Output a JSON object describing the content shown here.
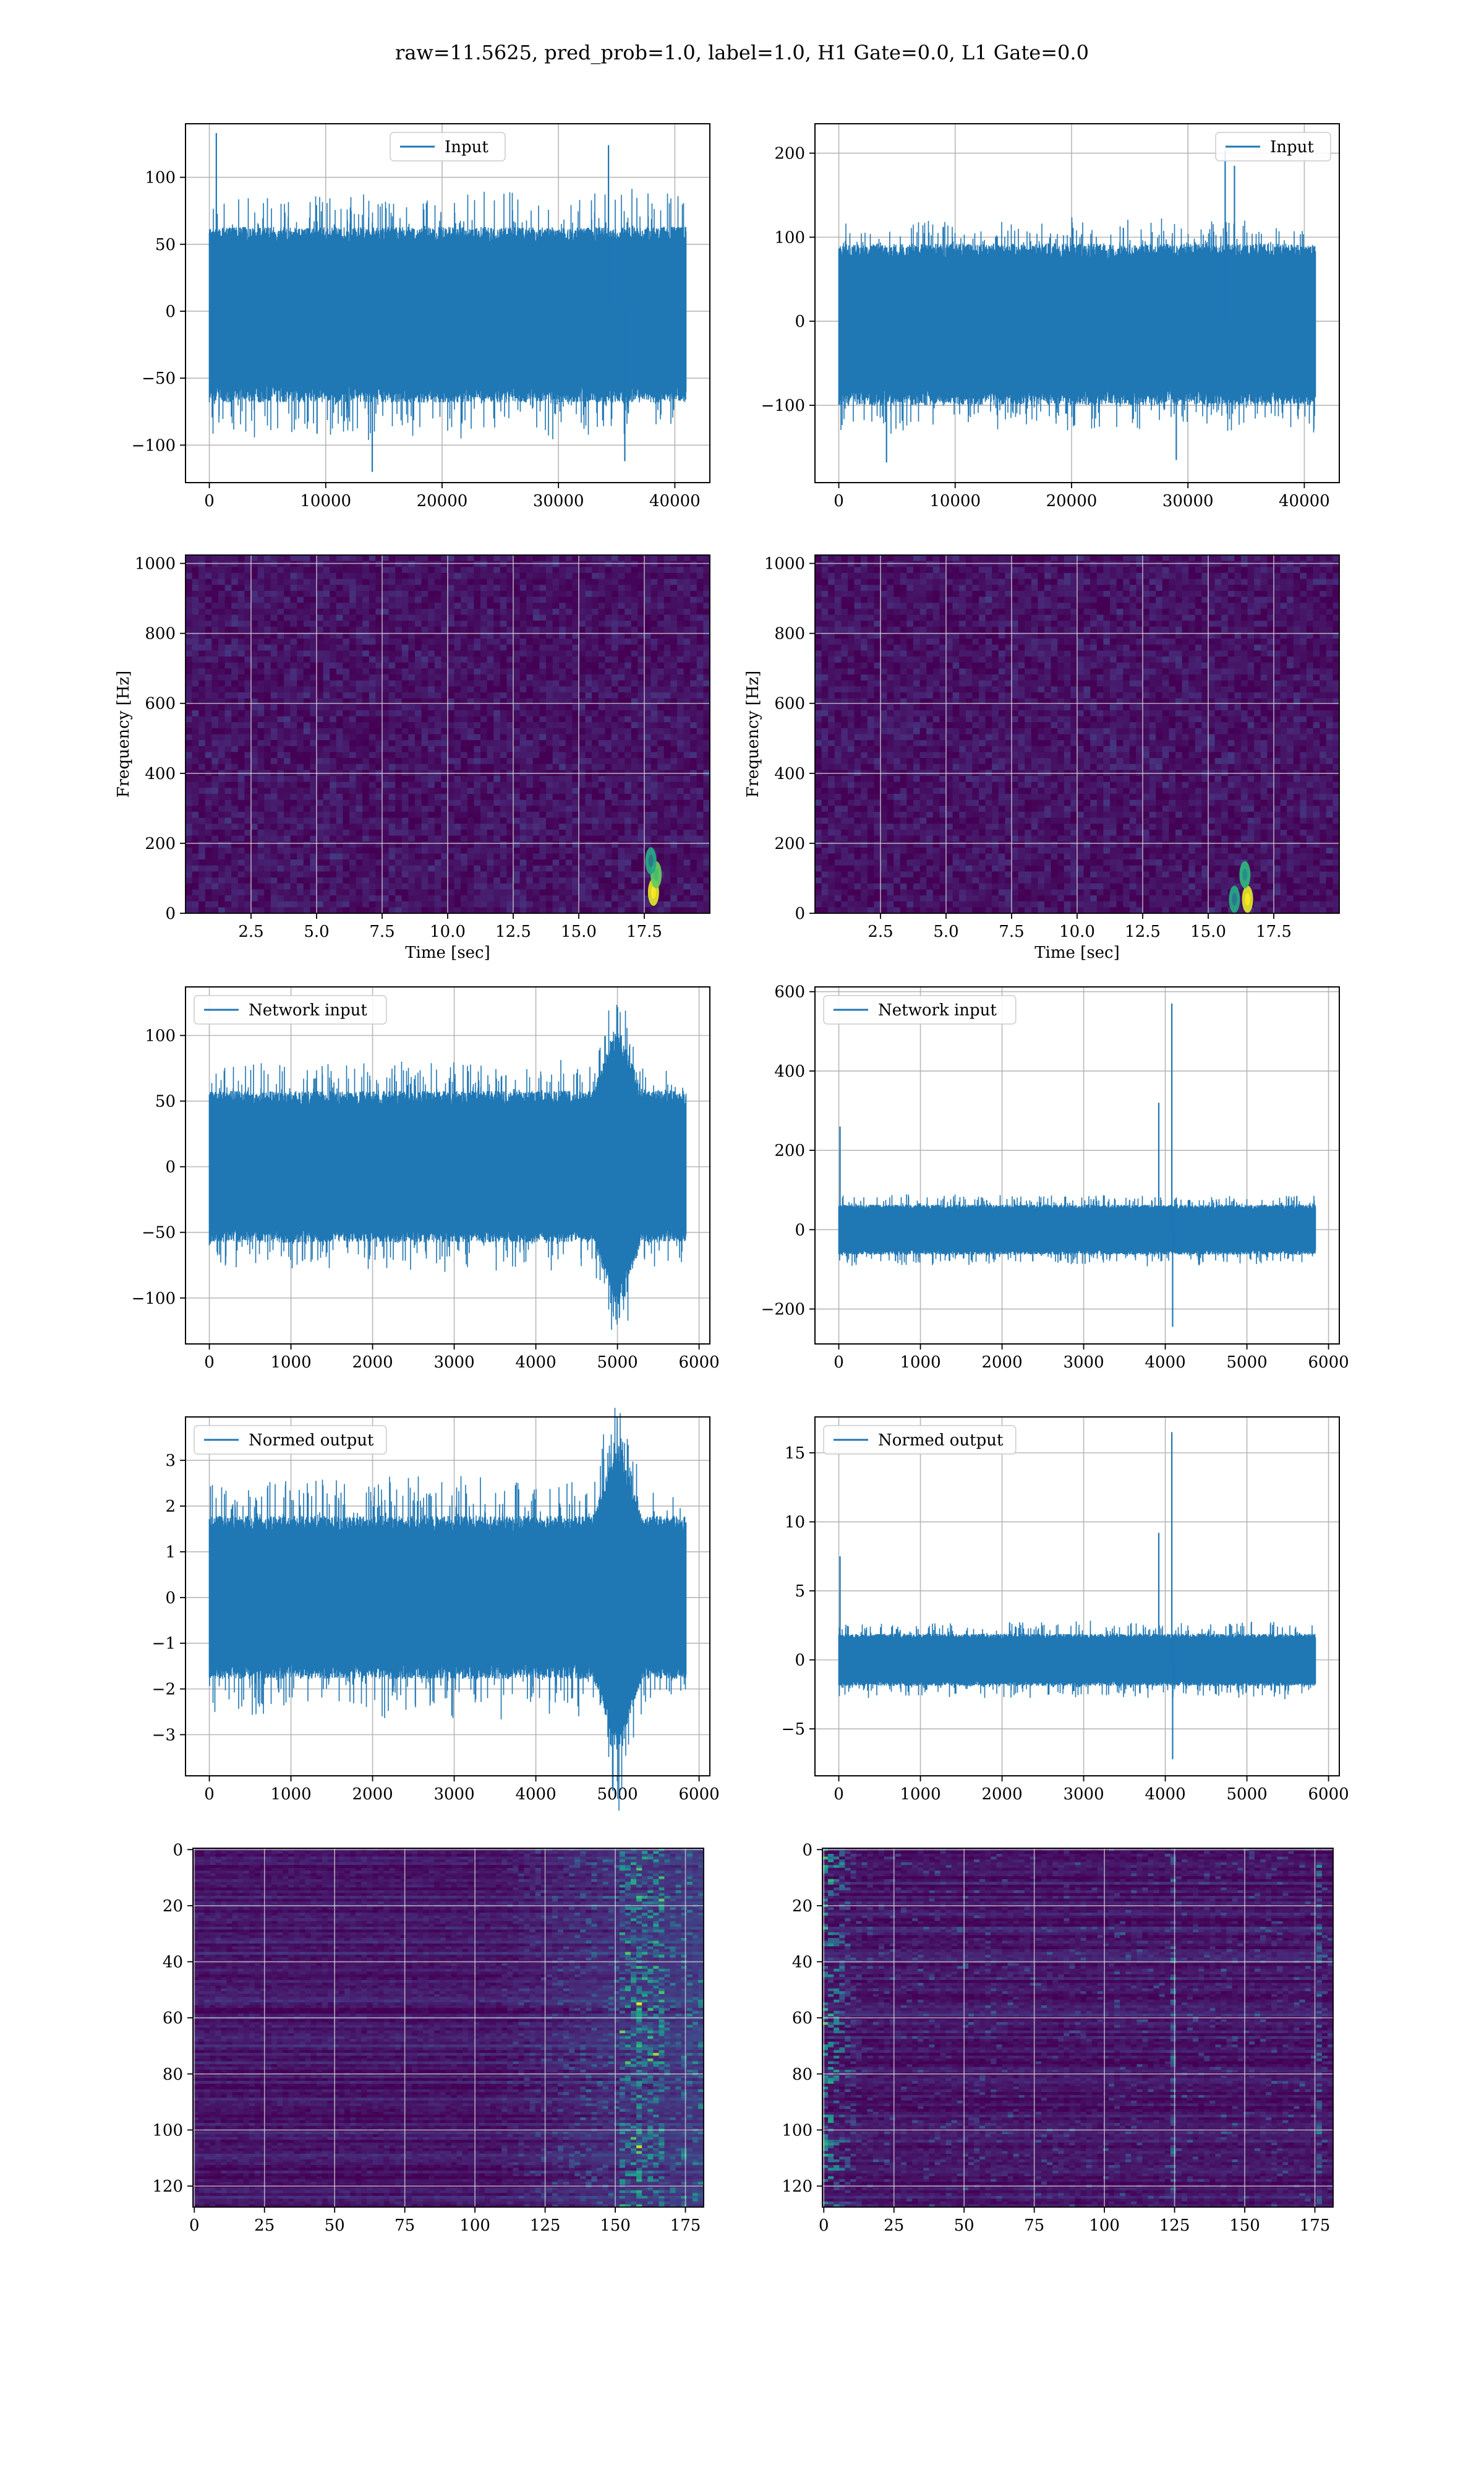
{
  "suptitle": "raw=11.5625, pred_prob=1.0, label=1.0, H1 Gate=0.0, L1 Gate=0.0",
  "colors": {
    "series": "#1f77b4",
    "grid": "#b0b0b0",
    "viridis_low": "#440154",
    "viridis_mid": "#21918c",
    "viridis_high": "#fde725"
  },
  "chart_data": [
    {
      "id": "r1c1",
      "type": "line",
      "title": "",
      "xlabel": "",
      "ylabel": "",
      "series": [
        {
          "name": "Input",
          "n_points": 40960,
          "envelope_y": [
            -95,
            90
          ],
          "typical_y": [
            -65,
            60
          ],
          "spikes": [
            {
              "x": 600,
              "y": 133
            },
            {
              "x": 14000,
              "y": -120
            },
            {
              "x": 34300,
              "y": 124
            },
            {
              "x": 35700,
              "y": -112
            }
          ]
        }
      ],
      "xlim": [
        -2048,
        43008
      ],
      "ylim": [
        -128,
        140
      ],
      "xticks": [
        0,
        10000,
        20000,
        30000,
        40000
      ],
      "xtick_labels": [
        "0",
        "10000",
        "20000",
        "30000",
        "40000"
      ],
      "yticks": [
        -100,
        -50,
        0,
        50,
        100
      ],
      "ytick_labels": [
        "−100",
        "−50",
        "0",
        "50",
        "100"
      ],
      "grid": true,
      "legend": "upper center"
    },
    {
      "id": "r1c2",
      "type": "line",
      "title": "",
      "xlabel": "",
      "ylabel": "",
      "series": [
        {
          "name": "Input",
          "n_points": 40960,
          "envelope_y": [
            -130,
            120
          ],
          "typical_y": [
            -95,
            88
          ],
          "spikes": [
            {
              "x": 33200,
              "y": 203
            },
            {
              "x": 34000,
              "y": 185
            },
            {
              "x": 4100,
              "y": -168
            },
            {
              "x": 29000,
              "y": -165
            }
          ]
        }
      ],
      "xlim": [
        -2048,
        43008
      ],
      "ylim": [
        -192,
        235
      ],
      "xticks": [
        0,
        10000,
        20000,
        30000,
        40000
      ],
      "xtick_labels": [
        "0",
        "10000",
        "20000",
        "30000",
        "40000"
      ],
      "yticks": [
        -100,
        0,
        100,
        200
      ],
      "ytick_labels": [
        "−100",
        "0",
        "100",
        "200"
      ],
      "grid": true,
      "legend": "upper right"
    },
    {
      "id": "r2c1",
      "type": "heatmap",
      "title": "",
      "xlabel": "Time [sec]",
      "ylabel": "Frequency [Hz]",
      "xlim": [
        0,
        20
      ],
      "ylim": [
        0,
        1024
      ],
      "xticks": [
        2.5,
        5,
        7.5,
        10,
        12.5,
        15,
        17.5
      ],
      "xtick_labels": [
        "2.5",
        "5.0",
        "7.5",
        "10.0",
        "12.5",
        "15.0",
        "17.5"
      ],
      "yticks": [
        0,
        200,
        400,
        600,
        800,
        1000
      ],
      "ytick_labels": [
        "0",
        "200",
        "400",
        "600",
        "800",
        "1000"
      ],
      "grid": true,
      "colormap": "viridis",
      "hotspots": [
        {
          "t": 17.85,
          "f": 60,
          "level": 1.0
        },
        {
          "t": 17.95,
          "f": 110,
          "level": 0.7
        },
        {
          "t": 17.75,
          "f": 150,
          "level": 0.4
        }
      ]
    },
    {
      "id": "r2c2",
      "type": "heatmap",
      "title": "",
      "xlabel": "Time [sec]",
      "ylabel": "Frequency [Hz]",
      "xlim": [
        0,
        20
      ],
      "ylim": [
        0,
        1024
      ],
      "xticks": [
        2.5,
        5,
        7.5,
        10,
        12.5,
        15,
        17.5
      ],
      "xtick_labels": [
        "2.5",
        "5.0",
        "7.5",
        "10.0",
        "12.5",
        "15.0",
        "17.5"
      ],
      "yticks": [
        0,
        200,
        400,
        600,
        800,
        1000
      ],
      "ytick_labels": [
        "0",
        "200",
        "400",
        "600",
        "800",
        "1000"
      ],
      "grid": true,
      "colormap": "viridis",
      "hotspots": [
        {
          "t": 16.5,
          "f": 40,
          "level": 1.0
        },
        {
          "t": 16.4,
          "f": 110,
          "level": 0.5
        },
        {
          "t": 16.0,
          "f": 40,
          "level": 0.4
        }
      ]
    },
    {
      "id": "r3c1",
      "type": "line",
      "title": "",
      "xlabel": "",
      "ylabel": "",
      "series": [
        {
          "name": "Network input",
          "n_points": 5840,
          "envelope_y": [
            -80,
            80
          ],
          "typical_y": [
            -55,
            55
          ],
          "burst": {
            "x": [
              4700,
              5300
            ],
            "amp": 125
          }
        }
      ],
      "xlim": [
        -292,
        6132
      ],
      "ylim": [
        -135,
        137
      ],
      "xticks": [
        0,
        1000,
        2000,
        3000,
        4000,
        5000,
        6000
      ],
      "xtick_labels": [
        "0",
        "1000",
        "2000",
        "3000",
        "4000",
        "5000",
        "6000"
      ],
      "yticks": [
        -100,
        -50,
        0,
        50,
        100
      ],
      "ytick_labels": [
        "−100",
        "−50",
        "0",
        "50",
        "100"
      ],
      "grid": true,
      "legend": "upper left"
    },
    {
      "id": "r3c2",
      "type": "line",
      "title": "",
      "xlabel": "",
      "ylabel": "",
      "series": [
        {
          "name": "Network input",
          "n_points": 5840,
          "envelope_y": [
            -90,
            90
          ],
          "typical_y": [
            -60,
            60
          ],
          "spikes": [
            {
              "x": 15,
              "y": 260
            },
            {
              "x": 3920,
              "y": 320
            },
            {
              "x": 4080,
              "y": 570
            },
            {
              "x": 4090,
              "y": -245
            }
          ]
        }
      ],
      "xlim": [
        -292,
        6132
      ],
      "ylim": [
        -288,
        612
      ],
      "xticks": [
        0,
        1000,
        2000,
        3000,
        4000,
        5000,
        6000
      ],
      "xtick_labels": [
        "0",
        "1000",
        "2000",
        "3000",
        "4000",
        "5000",
        "6000"
      ],
      "yticks": [
        -200,
        0,
        200,
        400,
        600
      ],
      "ytick_labels": [
        "−200",
        "0",
        "200",
        "400",
        "600"
      ],
      "grid": true,
      "legend": "upper left"
    },
    {
      "id": "r4c1",
      "type": "line",
      "title": "",
      "xlabel": "",
      "ylabel": "",
      "series": [
        {
          "name": "Normed output",
          "n_points": 5840,
          "envelope_y": [
            -2.6,
            2.6
          ],
          "typical_y": [
            -1.7,
            1.7
          ],
          "burst": {
            "x": [
              4700,
              5300
            ],
            "amp": 3.6
          }
        }
      ],
      "xlim": [
        -292,
        6132
      ],
      "ylim": [
        -3.9,
        3.95
      ],
      "xticks": [
        0,
        1000,
        2000,
        3000,
        4000,
        5000,
        6000
      ],
      "xtick_labels": [
        "0",
        "1000",
        "2000",
        "3000",
        "4000",
        "5000",
        "6000"
      ],
      "yticks": [
        -3,
        -2,
        -1,
        0,
        1,
        2,
        3
      ],
      "ytick_labels": [
        "−3",
        "−2",
        "−1",
        "0",
        "1",
        "2",
        "3"
      ],
      "grid": true,
      "legend": "upper left"
    },
    {
      "id": "r4c2",
      "type": "line",
      "title": "",
      "xlabel": "",
      "ylabel": "",
      "series": [
        {
          "name": "Normed output",
          "n_points": 5840,
          "envelope_y": [
            -2.8,
            2.8
          ],
          "typical_y": [
            -1.8,
            1.8
          ],
          "spikes": [
            {
              "x": 15,
              "y": 7.5
            },
            {
              "x": 3920,
              "y": 9.2
            },
            {
              "x": 4080,
              "y": 16.5
            },
            {
              "x": 4090,
              "y": -7.2
            }
          ]
        }
      ],
      "xlim": [
        -292,
        6132
      ],
      "ylim": [
        -8.4,
        17.6
      ],
      "xticks": [
        0,
        1000,
        2000,
        3000,
        4000,
        5000,
        6000
      ],
      "xtick_labels": [
        "0",
        "1000",
        "2000",
        "3000",
        "4000",
        "5000",
        "6000"
      ],
      "yticks": [
        -5,
        0,
        5,
        10,
        15
      ],
      "ytick_labels": [
        "−5",
        "0",
        "5",
        "10",
        "15"
      ],
      "grid": true,
      "legend": "upper left"
    },
    {
      "id": "r5c1",
      "type": "heatmap",
      "title": "",
      "xlabel": "",
      "ylabel": "",
      "n_cols": 182,
      "n_rows": 128,
      "xlim": [
        -0.5,
        181.5
      ],
      "ylim": [
        127.5,
        -0.5
      ],
      "xticks": [
        0,
        25,
        50,
        75,
        100,
        125,
        150,
        175
      ],
      "xtick_labels": [
        "0",
        "25",
        "50",
        "75",
        "100",
        "125",
        "150",
        "175"
      ],
      "yticks": [
        0,
        20,
        40,
        60,
        80,
        100,
        120
      ],
      "ytick_labels": [
        "0",
        "20",
        "40",
        "60",
        "80",
        "100",
        "120"
      ],
      "grid": true,
      "colormap": "viridis",
      "activity": {
        "onset_col": 110,
        "peak_cols": [
          155,
          162
        ],
        "level": 0.9
      }
    },
    {
      "id": "r5c2",
      "type": "heatmap",
      "title": "",
      "xlabel": "",
      "ylabel": "",
      "n_cols": 182,
      "n_rows": 128,
      "xlim": [
        -0.5,
        181.5
      ],
      "ylim": [
        127.5,
        -0.5
      ],
      "xticks": [
        0,
        25,
        50,
        75,
        100,
        125,
        150,
        175
      ],
      "xtick_labels": [
        "0",
        "25",
        "50",
        "75",
        "100",
        "125",
        "150",
        "175"
      ],
      "yticks": [
        0,
        20,
        40,
        60,
        80,
        100,
        120
      ],
      "ytick_labels": [
        "0",
        "20",
        "40",
        "60",
        "80",
        "100",
        "120"
      ],
      "grid": true,
      "colormap": "viridis",
      "activity": {
        "left_edge_cols": [
          0,
          12
        ],
        "vertical_cols": [
          124,
          176
        ],
        "level": 0.75
      }
    }
  ]
}
